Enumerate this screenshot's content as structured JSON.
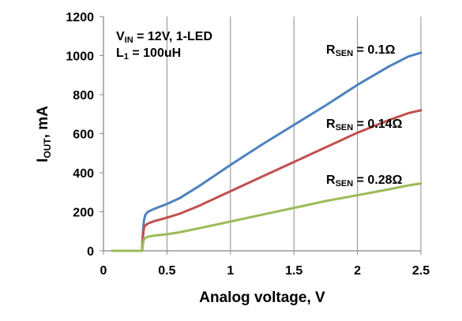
{
  "chart_data": {
    "type": "line",
    "xlabel": "Analog voltage, V",
    "ylabel": {
      "main": "I",
      "sub": "OUT",
      "rest": ", mA"
    },
    "xlim": [
      0,
      2.5
    ],
    "ylim": [
      0,
      1200
    ],
    "x_ticks": [
      0,
      0.5,
      1,
      1.5,
      2,
      2.5
    ],
    "x_tick_labels": [
      "0",
      "0.5",
      "1",
      "1.5",
      "2",
      "2.5"
    ],
    "y_ticks": [
      0,
      200,
      400,
      600,
      800,
      1000,
      1200
    ],
    "y_tick_labels": [
      "0",
      "200",
      "400",
      "600",
      "800",
      "1000",
      "1200"
    ],
    "grid": {
      "vertical": true,
      "horizontal": false
    },
    "conditions": [
      {
        "main": "V",
        "sub": "IN",
        "rest": " = 12V, 1-LED"
      },
      {
        "main": "L",
        "sub": "1",
        "rest": " = 100uH"
      }
    ],
    "series": [
      {
        "color": "#4f81bd",
        "label": {
          "main": "R",
          "sub": "SEN",
          "rest": " = 0.1Ω"
        },
        "x": [
          0.07,
          0.305,
          0.31,
          0.315,
          0.32,
          0.33,
          0.35,
          0.4,
          0.5,
          0.6,
          0.75,
          1.0,
          1.25,
          1.5,
          1.75,
          2.0,
          2.25,
          2.4,
          2.5
        ],
        "y": [
          0,
          0,
          80,
          130,
          160,
          185,
          200,
          215,
          240,
          270,
          330,
          440,
          545,
          645,
          745,
          850,
          945,
          995,
          1015
        ]
      },
      {
        "color": "#c0504d",
        "label": {
          "main": "R",
          "sub": "SEN",
          "rest": " = 0.14Ω"
        },
        "x": [
          0.07,
          0.305,
          0.31,
          0.315,
          0.32,
          0.33,
          0.35,
          0.4,
          0.5,
          0.6,
          0.75,
          1.0,
          1.25,
          1.5,
          1.75,
          2.0,
          2.25,
          2.4,
          2.5
        ],
        "y": [
          0,
          0,
          60,
          100,
          120,
          130,
          140,
          152,
          170,
          190,
          230,
          305,
          380,
          455,
          530,
          605,
          670,
          705,
          720
        ]
      },
      {
        "color": "#9bbb59",
        "label": {
          "main": "R",
          "sub": "SEN",
          "rest": " = 0.28Ω"
        },
        "x": [
          0.07,
          0.305,
          0.31,
          0.315,
          0.32,
          0.33,
          0.35,
          0.4,
          0.5,
          0.6,
          0.75,
          1.0,
          1.25,
          1.5,
          1.75,
          2.0,
          2.25,
          2.4,
          2.5
        ],
        "y": [
          0,
          0,
          30,
          50,
          60,
          66,
          72,
          78,
          85,
          95,
          115,
          150,
          185,
          220,
          255,
          285,
          315,
          335,
          345
        ]
      }
    ]
  }
}
